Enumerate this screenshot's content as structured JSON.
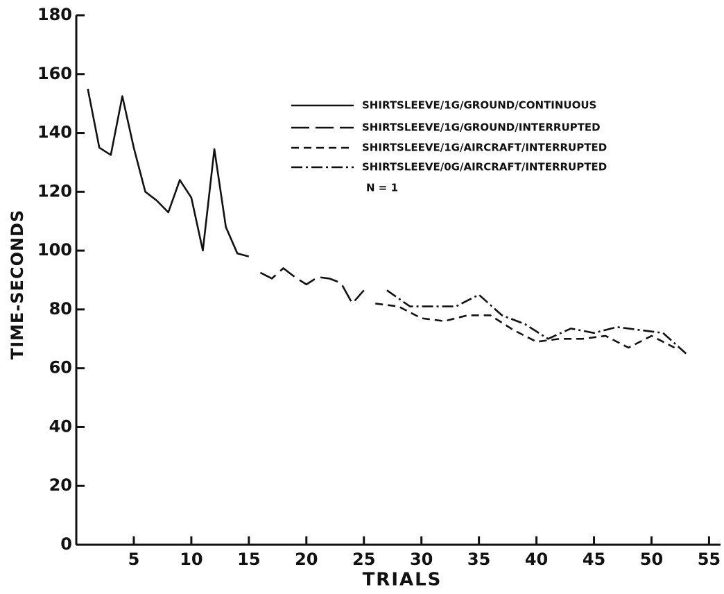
{
  "chart_data": {
    "type": "line",
    "xlabel": "TRIALS",
    "ylabel": "TIME-SECONDS",
    "annotation": "N = 1",
    "xlim": [
      0,
      56
    ],
    "ylim": [
      0,
      180
    ],
    "xticks": [
      5,
      10,
      15,
      20,
      25,
      30,
      35,
      40,
      45,
      50,
      55
    ],
    "yticks": [
      0,
      20,
      40,
      60,
      80,
      100,
      120,
      140,
      160,
      180
    ],
    "grid": false,
    "series": [
      {
        "name": "SHIRTSLEEVE/1G/GROUND/CONTINUOUS",
        "color": "#111111",
        "dash": "solid",
        "x": [
          1,
          2,
          3,
          4,
          5,
          6,
          7,
          8,
          9,
          10,
          11,
          12,
          13,
          14,
          15
        ],
        "values": [
          155,
          135,
          132.5,
          152.5,
          135,
          120,
          117,
          113,
          124,
          118,
          100,
          134.5,
          108,
          99,
          98
        ]
      },
      {
        "name": "SHIRTSLEEVE/1G/GROUND/INTERRUPTED",
        "color": "#111111",
        "dash": "long",
        "x": [
          16,
          17,
          18,
          19,
          20,
          21,
          22,
          23,
          24,
          25
        ],
        "values": [
          92.5,
          90.5,
          94,
          91,
          88.5,
          91,
          90.5,
          89,
          82,
          86.5
        ]
      },
      {
        "name": "SHIRTSLEEVE/1G/AIRCRAFT/INTERRUPTED",
        "color": "#111111",
        "dash": "short",
        "x": [
          26,
          28,
          30,
          32,
          34,
          36,
          38,
          40,
          42,
          44,
          46,
          48,
          50,
          52
        ],
        "values": [
          82,
          81,
          77,
          76,
          78,
          78,
          73,
          69,
          70,
          70,
          71,
          67,
          71,
          67
        ]
      },
      {
        "name": "SHIRTSLEEVE/0G/AIRCRAFT/INTERRUPTED",
        "color": "#111111",
        "dash": "dashdot",
        "x": [
          27,
          29,
          31,
          33,
          35,
          37,
          39,
          41,
          43,
          45,
          47,
          49,
          51,
          53
        ],
        "values": [
          86.5,
          81,
          81,
          81,
          85,
          78,
          75,
          70,
          73.5,
          72,
          74,
          73,
          72,
          65
        ]
      }
    ]
  }
}
